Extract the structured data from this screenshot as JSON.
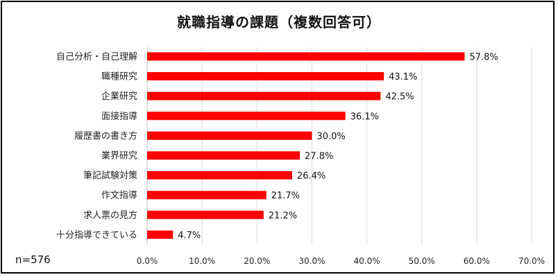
{
  "chart_data": {
    "type": "bar",
    "orientation": "horizontal",
    "title": "就職指導の課題（複数回答可）",
    "categories": [
      "自己分析・自己理解",
      "職種研究",
      "企業研究",
      "面接指導",
      "履歴書の書き方",
      "業界研究",
      "筆記試験対策",
      "作文指導",
      "求人票の見方",
      "十分指導できている"
    ],
    "values": [
      57.8,
      43.1,
      42.5,
      36.1,
      30.0,
      27.8,
      26.4,
      21.7,
      21.2,
      4.7
    ],
    "value_labels": [
      "57.8%",
      "43.1%",
      "42.5%",
      "36.1%",
      "30.0%",
      "27.8%",
      "26.4%",
      "21.7%",
      "21.2%",
      "4.7%"
    ],
    "x_ticks": [
      0,
      10,
      20,
      30,
      40,
      50,
      60,
      70
    ],
    "x_tick_labels": [
      "0.0%",
      "10.0%",
      "20.0%",
      "30.0%",
      "40.0%",
      "50.0%",
      "60.0%",
      "70.0%"
    ],
    "xlim": [
      0,
      70
    ],
    "grid": true,
    "bar_color": "#ff0000",
    "sample_size": "n=576"
  }
}
